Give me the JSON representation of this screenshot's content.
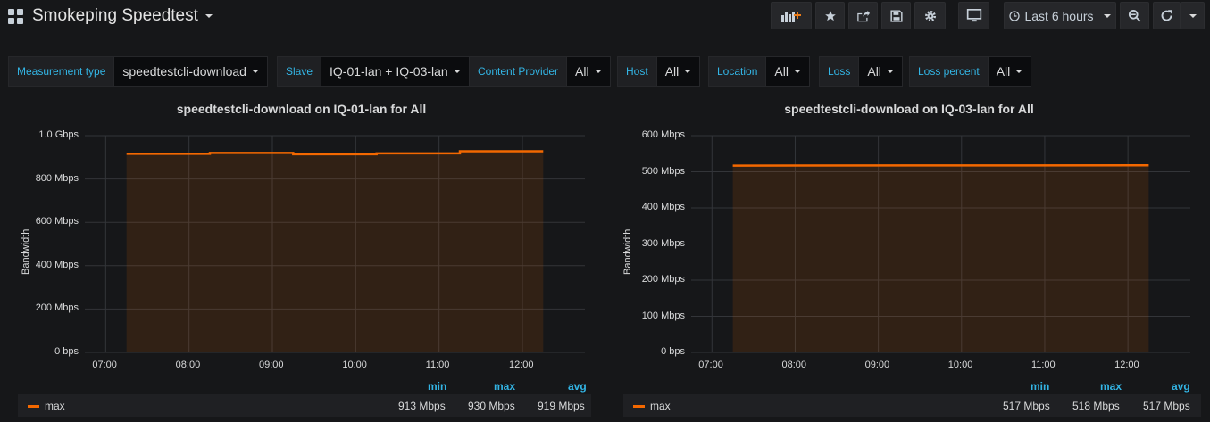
{
  "header": {
    "title": "Smokeping Speedtest",
    "time_range_label": "Last 6 hours"
  },
  "icons": {
    "apps": "apps-grid-icon",
    "add_panel": "add-panel-icon",
    "star": "star-icon",
    "share": "share-icon",
    "save": "save-icon",
    "settings": "gear-icon",
    "tv": "monitor-icon",
    "clock": "clock-icon",
    "zoom_out": "zoom-out-icon",
    "refresh": "refresh-icon"
  },
  "variables": [
    {
      "label": "Measurement type",
      "value": "speedtestcli-download"
    },
    {
      "label": "Slave",
      "value": "IQ-01-lan + IQ-03-lan"
    },
    {
      "label": "Content Provider",
      "value": "All"
    },
    {
      "label": "Host",
      "value": "All"
    },
    {
      "label": "Location",
      "value": "All"
    },
    {
      "label": "Loss",
      "value": "All"
    },
    {
      "label": "Loss percent",
      "value": "All"
    }
  ],
  "panels": [
    {
      "title": "speedtestcli-download on IQ-01-lan for All",
      "ylabel": "Bandwidth",
      "yticks": [
        "1.0 Gbps",
        "800 Mbps",
        "600 Mbps",
        "400 Mbps",
        "200 Mbps",
        "0 bps"
      ],
      "xticks": [
        "07:00",
        "08:00",
        "09:00",
        "10:00",
        "11:00",
        "12:00"
      ],
      "legend": {
        "headers": [
          "min",
          "max",
          "avg"
        ],
        "series": "max",
        "values": [
          "913 Mbps",
          "930 Mbps",
          "919 Mbps"
        ]
      }
    },
    {
      "title": "speedtestcli-download on IQ-03-lan for All",
      "ylabel": "Bandwidth",
      "yticks": [
        "600 Mbps",
        "500 Mbps",
        "400 Mbps",
        "300 Mbps",
        "200 Mbps",
        "100 Mbps",
        "0 bps"
      ],
      "xticks": [
        "07:00",
        "08:00",
        "09:00",
        "10:00",
        "11:00",
        "12:00"
      ],
      "legend": {
        "headers": [
          "min",
          "max",
          "avg"
        ],
        "series": "max",
        "values": [
          "517 Mbps",
          "518 Mbps",
          "517 Mbps"
        ]
      }
    }
  ],
  "chart_data": [
    {
      "type": "area",
      "title": "speedtestcli-download on IQ-01-lan for All",
      "ylabel": "Bandwidth",
      "ylim": [
        0,
        1000
      ],
      "unit": "Mbps",
      "x": [
        "07:15",
        "08:15",
        "08:15",
        "09:15",
        "09:15",
        "10:15",
        "10:15",
        "11:15",
        "11:15",
        "12:15"
      ],
      "series": [
        {
          "name": "max",
          "values": [
            916,
            916,
            920,
            920,
            914,
            914,
            918,
            918,
            928,
            928
          ]
        }
      ],
      "color": "#f46800"
    },
    {
      "type": "area",
      "title": "speedtestcli-download on IQ-03-lan for All",
      "ylabel": "Bandwidth",
      "ylim": [
        0,
        600
      ],
      "unit": "Mbps",
      "x": [
        "07:15",
        "12:15"
      ],
      "series": [
        {
          "name": "max",
          "values": [
            517,
            518
          ]
        }
      ],
      "color": "#f46800"
    }
  ]
}
